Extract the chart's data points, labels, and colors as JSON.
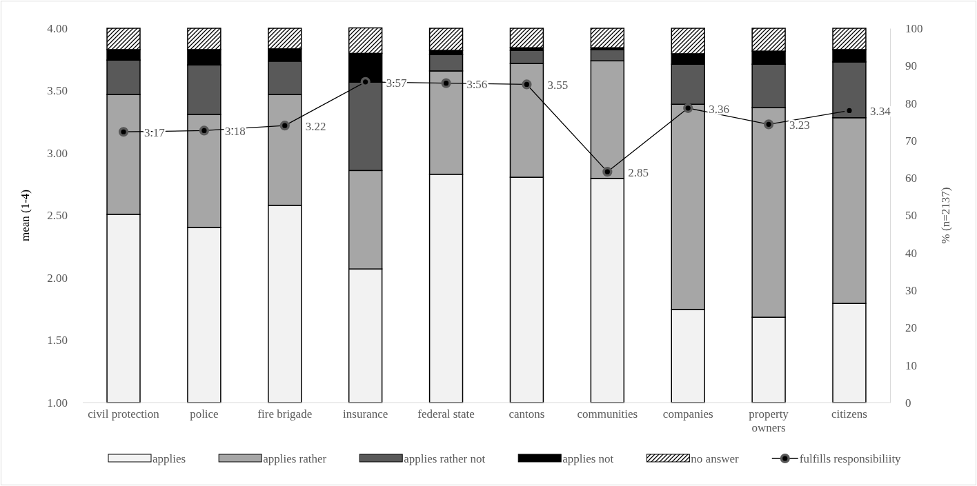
{
  "chart_data": {
    "type": "bar",
    "stacked": true,
    "xlabel": null,
    "ylabel": "mean (1-4)",
    "y2label": "% (n=2137)",
    "categories": [
      "civil protection",
      "police",
      "fire brigade",
      "insurance",
      "federal state",
      "cantons",
      "communities",
      "companies",
      "property owners",
      "citizens"
    ],
    "series": [
      {
        "name": "applies",
        "color": "#f2f2f2",
        "axis": "y2",
        "values": [
          50.3,
          46.8,
          52.7,
          35.7,
          61.0,
          60.2,
          59.9,
          24.9,
          22.8,
          26.5
        ]
      },
      {
        "name": "applies rather",
        "color": "#a6a6a6",
        "axis": "y2",
        "values": [
          32.0,
          30.2,
          29.6,
          26.3,
          27.6,
          30.4,
          31.4,
          54.8,
          56.0,
          49.6
        ]
      },
      {
        "name": "applies rather not",
        "color": "#595959",
        "axis": "y2",
        "values": [
          9.2,
          13.2,
          8.9,
          23.6,
          4.4,
          3.5,
          3.0,
          10.7,
          11.6,
          14.9
        ]
      },
      {
        "name": "applies not",
        "color": "#000000",
        "axis": "y2",
        "values": [
          2.8,
          4.1,
          3.3,
          7.7,
          1.1,
          0.7,
          0.5,
          2.8,
          3.5,
          3.3
        ]
      },
      {
        "name": "no answer",
        "color": "#000000",
        "axis": "y2",
        "values": [
          5.7,
          5.7,
          5.5,
          6.8,
          5.9,
          5.2,
          5.2,
          6.8,
          6.1,
          5.7
        ]
      },
      {
        "name": "fulfills responsibiliity",
        "type": "line",
        "color": "#000000",
        "axis": "y",
        "marker": "circle",
        "line_style": "solid",
        "data_labels": true,
        "values": [
          3.17,
          3.18,
          3.22,
          3.57,
          3.56,
          3.55,
          2.85,
          3.36,
          3.23,
          3.34
        ]
      }
    ],
    "ylim": [
      1,
      4
    ],
    "yticks": [
      {
        "value": 1,
        "label": "1.00"
      },
      {
        "value": 1.5,
        "label": "1.50"
      },
      {
        "value": 2,
        "label": "2.00"
      },
      {
        "value": 2.5,
        "label": "2.50"
      },
      {
        "value": 3,
        "label": "3.00"
      },
      {
        "value": 3.5,
        "label": "3.50"
      },
      {
        "value": 4,
        "label": "4.00"
      }
    ],
    "y2lim": [
      0,
      100
    ],
    "y2ticks": [
      0,
      10,
      20,
      30,
      40,
      50,
      60,
      70,
      80,
      90,
      100
    ],
    "grid": false,
    "legend": "bottom"
  }
}
